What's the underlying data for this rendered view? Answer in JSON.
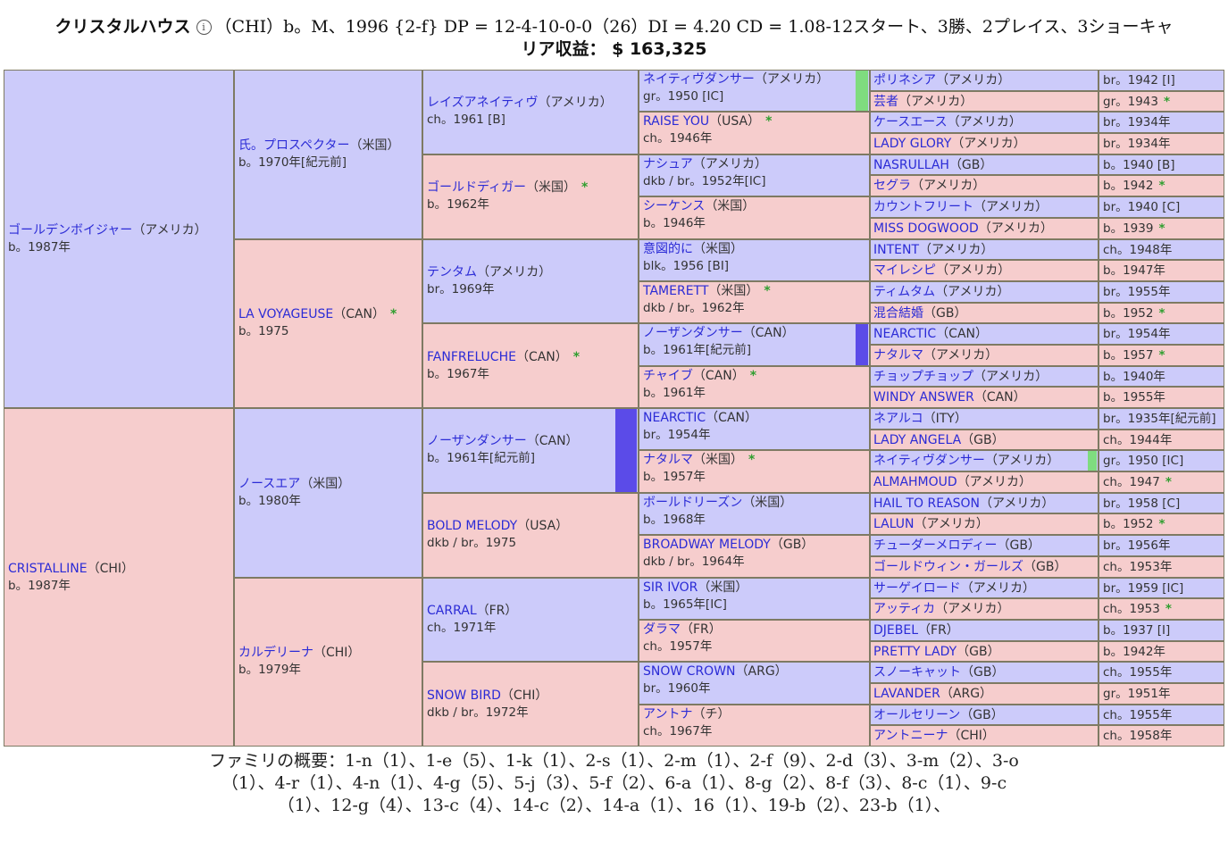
{
  "header": {
    "line1_name": "クリスタルハウス",
    "line1_rest": "（CHI）b。M、1996 {2-f} DP = 12-4-10-0-0（26）DI = 4.20 CD = 1.08-12スタート、3勝、2プレイス、3ショーキャ",
    "line2": "リア収益： $ 163,325",
    "info_icon": "i"
  },
  "gen1": [
    {
      "name": "ゴールデンボイジャー",
      "country": "（アメリカ）",
      "sub": "b。1987年",
      "sex": "m"
    },
    {
      "name": "CRISTALLINE",
      "country": "（CHI）",
      "sub": "b。1987年",
      "sex": "f"
    }
  ],
  "gen2": [
    {
      "name": "氏。プロスペクター",
      "country": "（米国）",
      "sub": "b。1970年[紀元前]",
      "sex": "m"
    },
    {
      "name": "LA VOYAGEUSE",
      "country": "（CAN）",
      "star": "*",
      "sub": "b。1975",
      "sex": "f"
    },
    {
      "name": "ノースエア",
      "country": "（米国）",
      "sub": "b。1980年",
      "sex": "m"
    },
    {
      "name": "カルデリーナ",
      "country": "（CHI）",
      "sub": "b。1979年",
      "sex": "f"
    }
  ],
  "gen3": [
    {
      "name": "レイズアネイティヴ",
      "country": "（アメリカ）",
      "sub": "ch。1961 [B]",
      "sex": "m"
    },
    {
      "name": "ゴールドディガー",
      "country": "（米国）",
      "star": "*",
      "sub": "b。1962年",
      "sex": "f"
    },
    {
      "name": "テンタム",
      "country": "（アメリカ）",
      "sub": "br。1969年",
      "sex": "m"
    },
    {
      "name": "FANFRELUCHE",
      "country": "（CAN）",
      "star": "*",
      "sub": "b。1967年",
      "sex": "f"
    },
    {
      "name": "ノーザンダンサー",
      "country": "（CAN）",
      "sub": "b。1961年[紀元前]",
      "sex": "m"
    },
    {
      "name": "BOLD MELODY",
      "country": "（USA）",
      "sub": "dkb / br。1975",
      "sex": "f"
    },
    {
      "name": "CARRAL",
      "country": "（FR）",
      "sub": "ch。1971年",
      "sex": "m"
    },
    {
      "name": "SNOW BIRD",
      "country": "（CHI）",
      "sub": "dkb / br。1972年",
      "sex": "f"
    }
  ],
  "gen4": [
    {
      "name": "ネイティヴダンサー",
      "country": "（アメリカ）",
      "sub": "gr。1950 [IC]",
      "sex": "m"
    },
    {
      "name": "RAISE YOU",
      "country": "（USA）",
      "star": "*",
      "sub": "ch。1946年",
      "sex": "f"
    },
    {
      "name": "ナシュア",
      "country": "（アメリカ）",
      "sub": "dkb / br。1952年[IC]",
      "sex": "m"
    },
    {
      "name": "シーケンス",
      "country": "（米国）",
      "sub": "b。1946年",
      "sex": "f"
    },
    {
      "name": "意図的に",
      "country": "（米国）",
      "sub": "blk。1956 [BI]",
      "sex": "m"
    },
    {
      "name": "TAMERETT",
      "country": "（米国）",
      "star": "*",
      "sub": "dkb / br。1962年",
      "sex": "f"
    },
    {
      "name": "ノーザンダンサー",
      "country": "（CAN）",
      "sub": "b。1961年[紀元前]",
      "sex": "m"
    },
    {
      "name": "チャイブ",
      "country": "（CAN）",
      "star": "*",
      "sub": "b。1961年",
      "sex": "f"
    },
    {
      "name": "NEARCTIC",
      "country": "（CAN）",
      "sub": "br。1954年",
      "sex": "m"
    },
    {
      "name": "ナタルマ",
      "country": "（米国）",
      "star": "*",
      "sub": "b。1957年",
      "sex": "f"
    },
    {
      "name": "ボールドリーズン",
      "country": "（米国）",
      "sub": "b。1968年",
      "sex": "m"
    },
    {
      "name": "BROADWAY MELODY",
      "country": "（GB）",
      "sub": "dkb / br。1964年",
      "sex": "f"
    },
    {
      "name": "SIR IVOR",
      "country": "（米国）",
      "sub": "b。1965年[IC]",
      "sex": "m"
    },
    {
      "name": "ダラマ",
      "country": "（FR）",
      "sub": "ch。1957年",
      "sex": "f"
    },
    {
      "name": "SNOW CROWN",
      "country": "（ARG）",
      "sub": "br。1960年",
      "sex": "m"
    },
    {
      "name": "アントナ",
      "country": "（チ）",
      "sub": "ch。1967年",
      "sex": "f"
    }
  ],
  "gen5": [
    {
      "name": "ポリネシア",
      "country": "（アメリカ）",
      "sub": "br。1942 [I]",
      "sex": "m"
    },
    {
      "name": "芸者",
      "country": "（アメリカ）",
      "sub": "gr。1943",
      "star": "*",
      "sex": "f"
    },
    {
      "name": "ケースエース",
      "country": "（アメリカ）",
      "sub": "br。1934年",
      "sex": "m"
    },
    {
      "name": "LADY GLORY",
      "country": "（アメリカ）",
      "sub": "br。1934年",
      "sex": "f"
    },
    {
      "name": "NASRULLAH",
      "country": "（GB）",
      "sub": "b。1940 [B]",
      "sex": "m"
    },
    {
      "name": "セグラ",
      "country": "（アメリカ）",
      "sub": "b。1942",
      "star": "*",
      "sex": "f"
    },
    {
      "name": "カウントフリート",
      "country": "（アメリカ）",
      "sub": "br。1940 [C]",
      "sex": "m"
    },
    {
      "name": "MISS DOGWOOD",
      "country": "（アメリカ）",
      "sub": "b。1939",
      "star": "*",
      "sex": "f"
    },
    {
      "name": "INTENT",
      "country": "（アメリカ）",
      "sub": "ch。1948年",
      "sex": "m"
    },
    {
      "name": "マイレシピ",
      "country": "（アメリカ）",
      "sub": "b。1947年",
      "sex": "f"
    },
    {
      "name": "ティムタム",
      "country": "（アメリカ）",
      "sub": "br。1955年",
      "sex": "m"
    },
    {
      "name": "混合結婚",
      "country": "（GB）",
      "sub": "b。1952",
      "star": "*",
      "sex": "f"
    },
    {
      "name": "NEARCTIC",
      "country": "（CAN）",
      "sub": "br。1954年",
      "sex": "m"
    },
    {
      "name": "ナタルマ",
      "country": "（アメリカ）",
      "sub": "b。1957",
      "star": "*",
      "sex": "f"
    },
    {
      "name": "チョップチョップ",
      "country": "（アメリカ）",
      "sub": "b。1940年",
      "sex": "m"
    },
    {
      "name": "WINDY ANSWER",
      "country": "（CAN）",
      "sub": "b。1955年",
      "sex": "f"
    },
    {
      "name": "ネアルコ",
      "country": "（ITY）",
      "sub": "br。1935年[紀元前]",
      "sex": "m"
    },
    {
      "name": "LADY ANGELA",
      "country": "（GB）",
      "sub": "ch。1944年",
      "sex": "f"
    },
    {
      "name": "ネイティヴダンサー",
      "country": "（アメリカ）",
      "sub": "gr。1950 [IC]",
      "sex": "m"
    },
    {
      "name": "ALMAHMOUD",
      "country": "（アメリカ）",
      "sub": "ch。1947",
      "star": "*",
      "sex": "f"
    },
    {
      "name": "HAIL TO REASON",
      "country": "（アメリカ）",
      "sub": "br。1958 [C]",
      "sex": "m"
    },
    {
      "name": "LALUN",
      "country": "（アメリカ）",
      "sub": "b。1952",
      "star": "*",
      "sex": "f"
    },
    {
      "name": "チューダーメロディー",
      "country": "（GB）",
      "sub": "br。1956年",
      "sex": "m"
    },
    {
      "name": "ゴールドウィン・ガールズ",
      "country": "（GB）",
      "sub": "ch。1953年",
      "sex": "f"
    },
    {
      "name": "サーゲイロード",
      "country": "（アメリカ）",
      "sub": "br。1959 [IC]",
      "sex": "m"
    },
    {
      "name": "アッティカ",
      "country": "（アメリカ）",
      "sub": "ch。1953",
      "star": "*",
      "sex": "f"
    },
    {
      "name": "DJEBEL",
      "country": "（FR）",
      "sub": "b。1937 [I]",
      "sex": "m"
    },
    {
      "name": "PRETTY LADY",
      "country": "（GB）",
      "sub": "b。1942年",
      "sex": "f"
    },
    {
      "name": "スノーキャット",
      "country": "（GB）",
      "sub": "ch。1955年",
      "sex": "m"
    },
    {
      "name": "LAVANDER",
      "country": "（ARG）",
      "sub": "gr。1951年",
      "sex": "f"
    },
    {
      "name": "オールセリーン",
      "country": "（GB）",
      "sub": "ch。1955年",
      "sex": "m"
    },
    {
      "name": "アントニーナ",
      "country": "（CHI）",
      "sub": "ch。1958年",
      "sex": "f"
    }
  ],
  "markers": {
    "green": "#7fdc7f",
    "blue": "#5b4be8"
  },
  "family_summary": {
    "line1": "ファミリの概要：1-n（1）、1-e（5）、1-k（1）、2-s（1）、2-m（1）、2-f（9）、2-d（3）、3-m（2）、3-o",
    "line2": "（1）、4-r（1）、4-n（1）、4-g（5）、5-j（3）、5-f（2）、6-a（1）、8-g（2）、8-f（3）、8-c（1）、9-c",
    "line3": "（1）、12-g（4）、13-c（4）、14-c（2）、14-a（1）、16（1）、19-b（2）、23-b（1）、"
  }
}
